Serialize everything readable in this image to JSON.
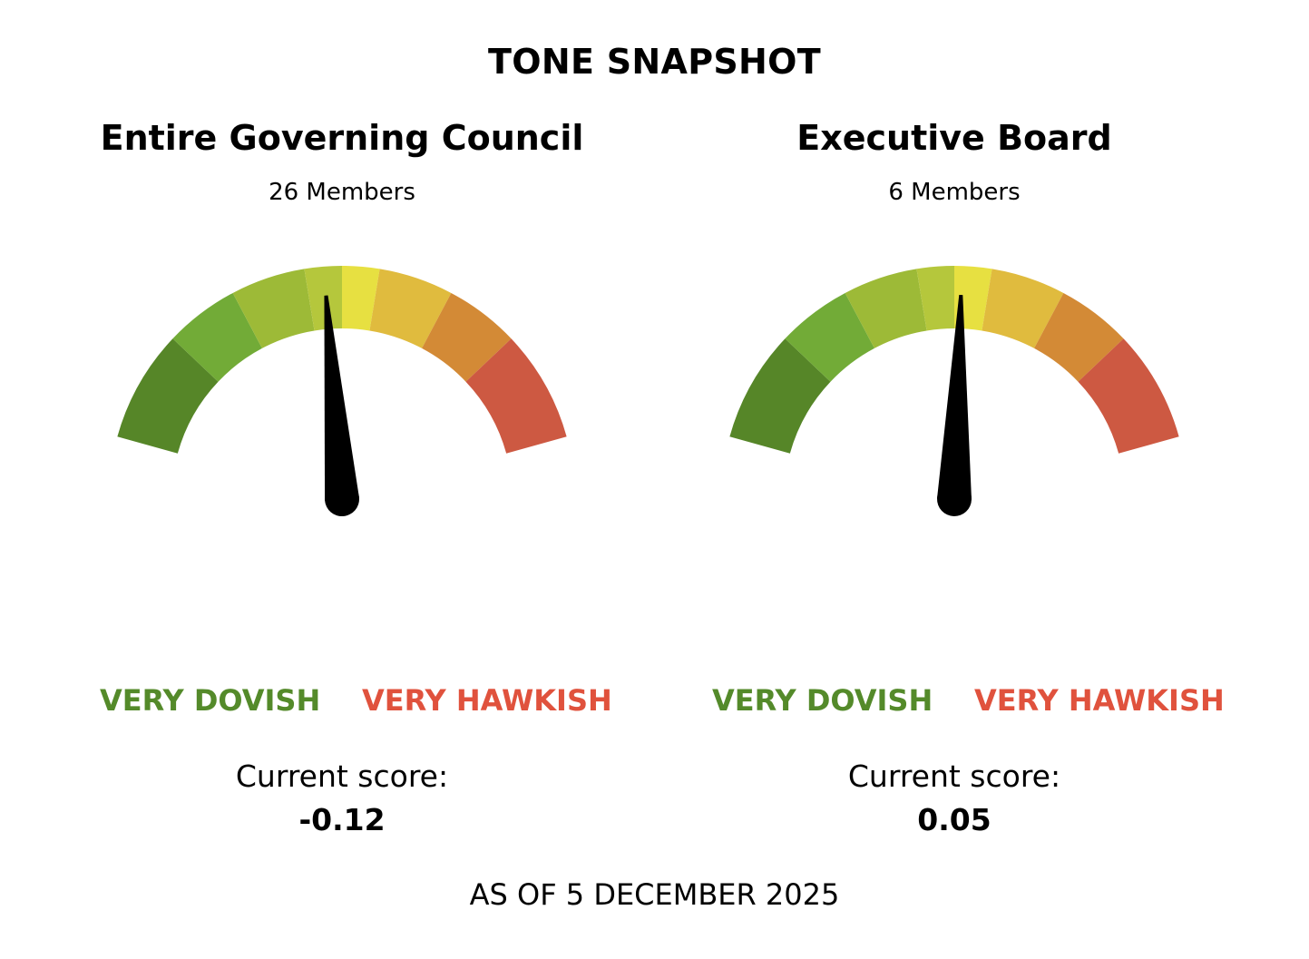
{
  "title": "TONE SNAPSHOT",
  "footer": "AS OF 5 DECEMBER 2025",
  "colors": {
    "dovish_label": "#548a2a",
    "hawkish_label": "#e0523d",
    "segments": [
      "#568628",
      "#72ab37",
      "#9dba37",
      "#b5c73c",
      "#e7e041",
      "#e0bb3e",
      "#d38a36",
      "#cd5942"
    ],
    "needle": "#000000"
  },
  "chart_data": [
    {
      "type": "gauge",
      "title": "Entire Governing Council",
      "subtitle": "26 Members",
      "min_label": "VERY DOVISH",
      "max_label": "VERY HAWKISH",
      "score_label": "Current score:",
      "score_text": "-0.12",
      "value": -0.12,
      "range": [
        -2,
        2
      ],
      "segment_bounds": [
        -2,
        -1.25,
        -0.75,
        -0.25,
        0,
        0.25,
        0.75,
        1.25,
        2
      ]
    },
    {
      "type": "gauge",
      "title": "Executive Board",
      "subtitle": "6 Members",
      "min_label": "VERY DOVISH",
      "max_label": "VERY HAWKISH",
      "score_label": "Current score:",
      "score_text": "0.05",
      "value": 0.05,
      "range": [
        -2,
        2
      ],
      "segment_bounds": [
        -2,
        -1.25,
        -0.75,
        -0.25,
        0,
        0.25,
        0.75,
        1.25,
        2
      ]
    }
  ]
}
